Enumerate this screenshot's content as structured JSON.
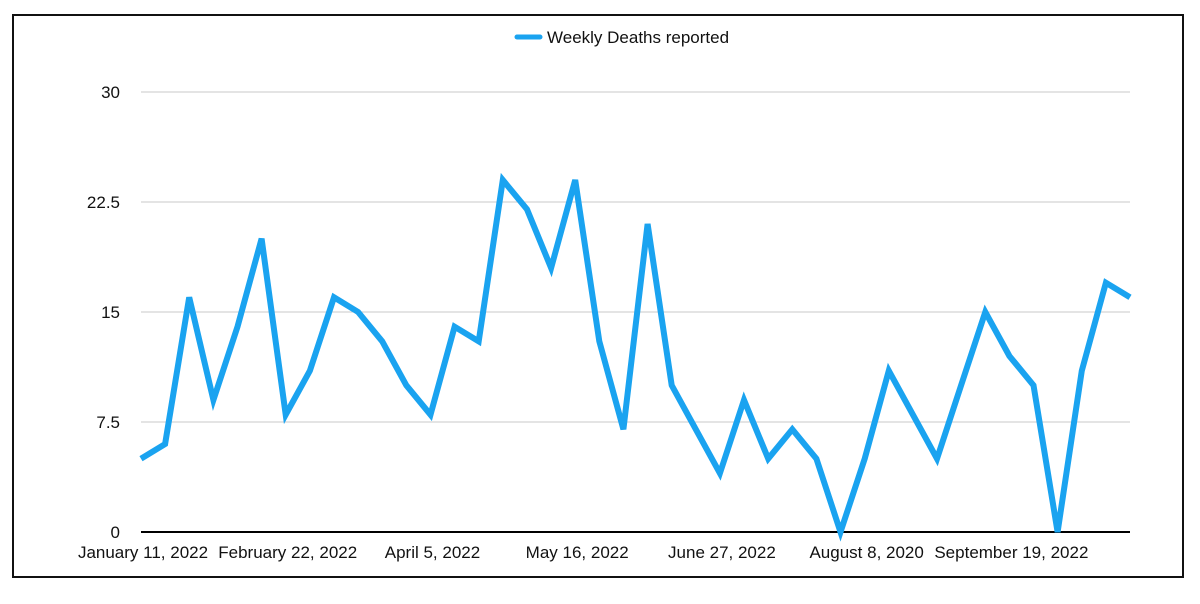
{
  "chart_data": {
    "type": "line",
    "title": "",
    "xlabel": "",
    "ylabel": "",
    "ylim": [
      0,
      30
    ],
    "yticks": [
      "0",
      "7.5",
      "15",
      "22.5",
      "30"
    ],
    "grid": true,
    "legend_position": "top-center",
    "x_tick_labels": [
      {
        "label": "January 11, 2022",
        "index": 0
      },
      {
        "label": "February 22, 2022",
        "index": 6
      },
      {
        "label": "April 5, 2022",
        "index": 12
      },
      {
        "label": "May 16, 2022",
        "index": 18
      },
      {
        "label": "June 27, 2022",
        "index": 24
      },
      {
        "label": "August 8, 2020",
        "index": 30
      },
      {
        "label": "September 19, 2022",
        "index": 36
      }
    ],
    "series": [
      {
        "name": "Weekly Deaths reported",
        "color": "#1aa3f0",
        "values": [
          5,
          6,
          16,
          9,
          14,
          20,
          8,
          11,
          16,
          15,
          13,
          10,
          8,
          14,
          13,
          24,
          22,
          18,
          24,
          13,
          7,
          21,
          10,
          7,
          4,
          9,
          5,
          7,
          5,
          0,
          5,
          11,
          8,
          5,
          10,
          15,
          12,
          10,
          0,
          11,
          17,
          16
        ]
      }
    ]
  }
}
